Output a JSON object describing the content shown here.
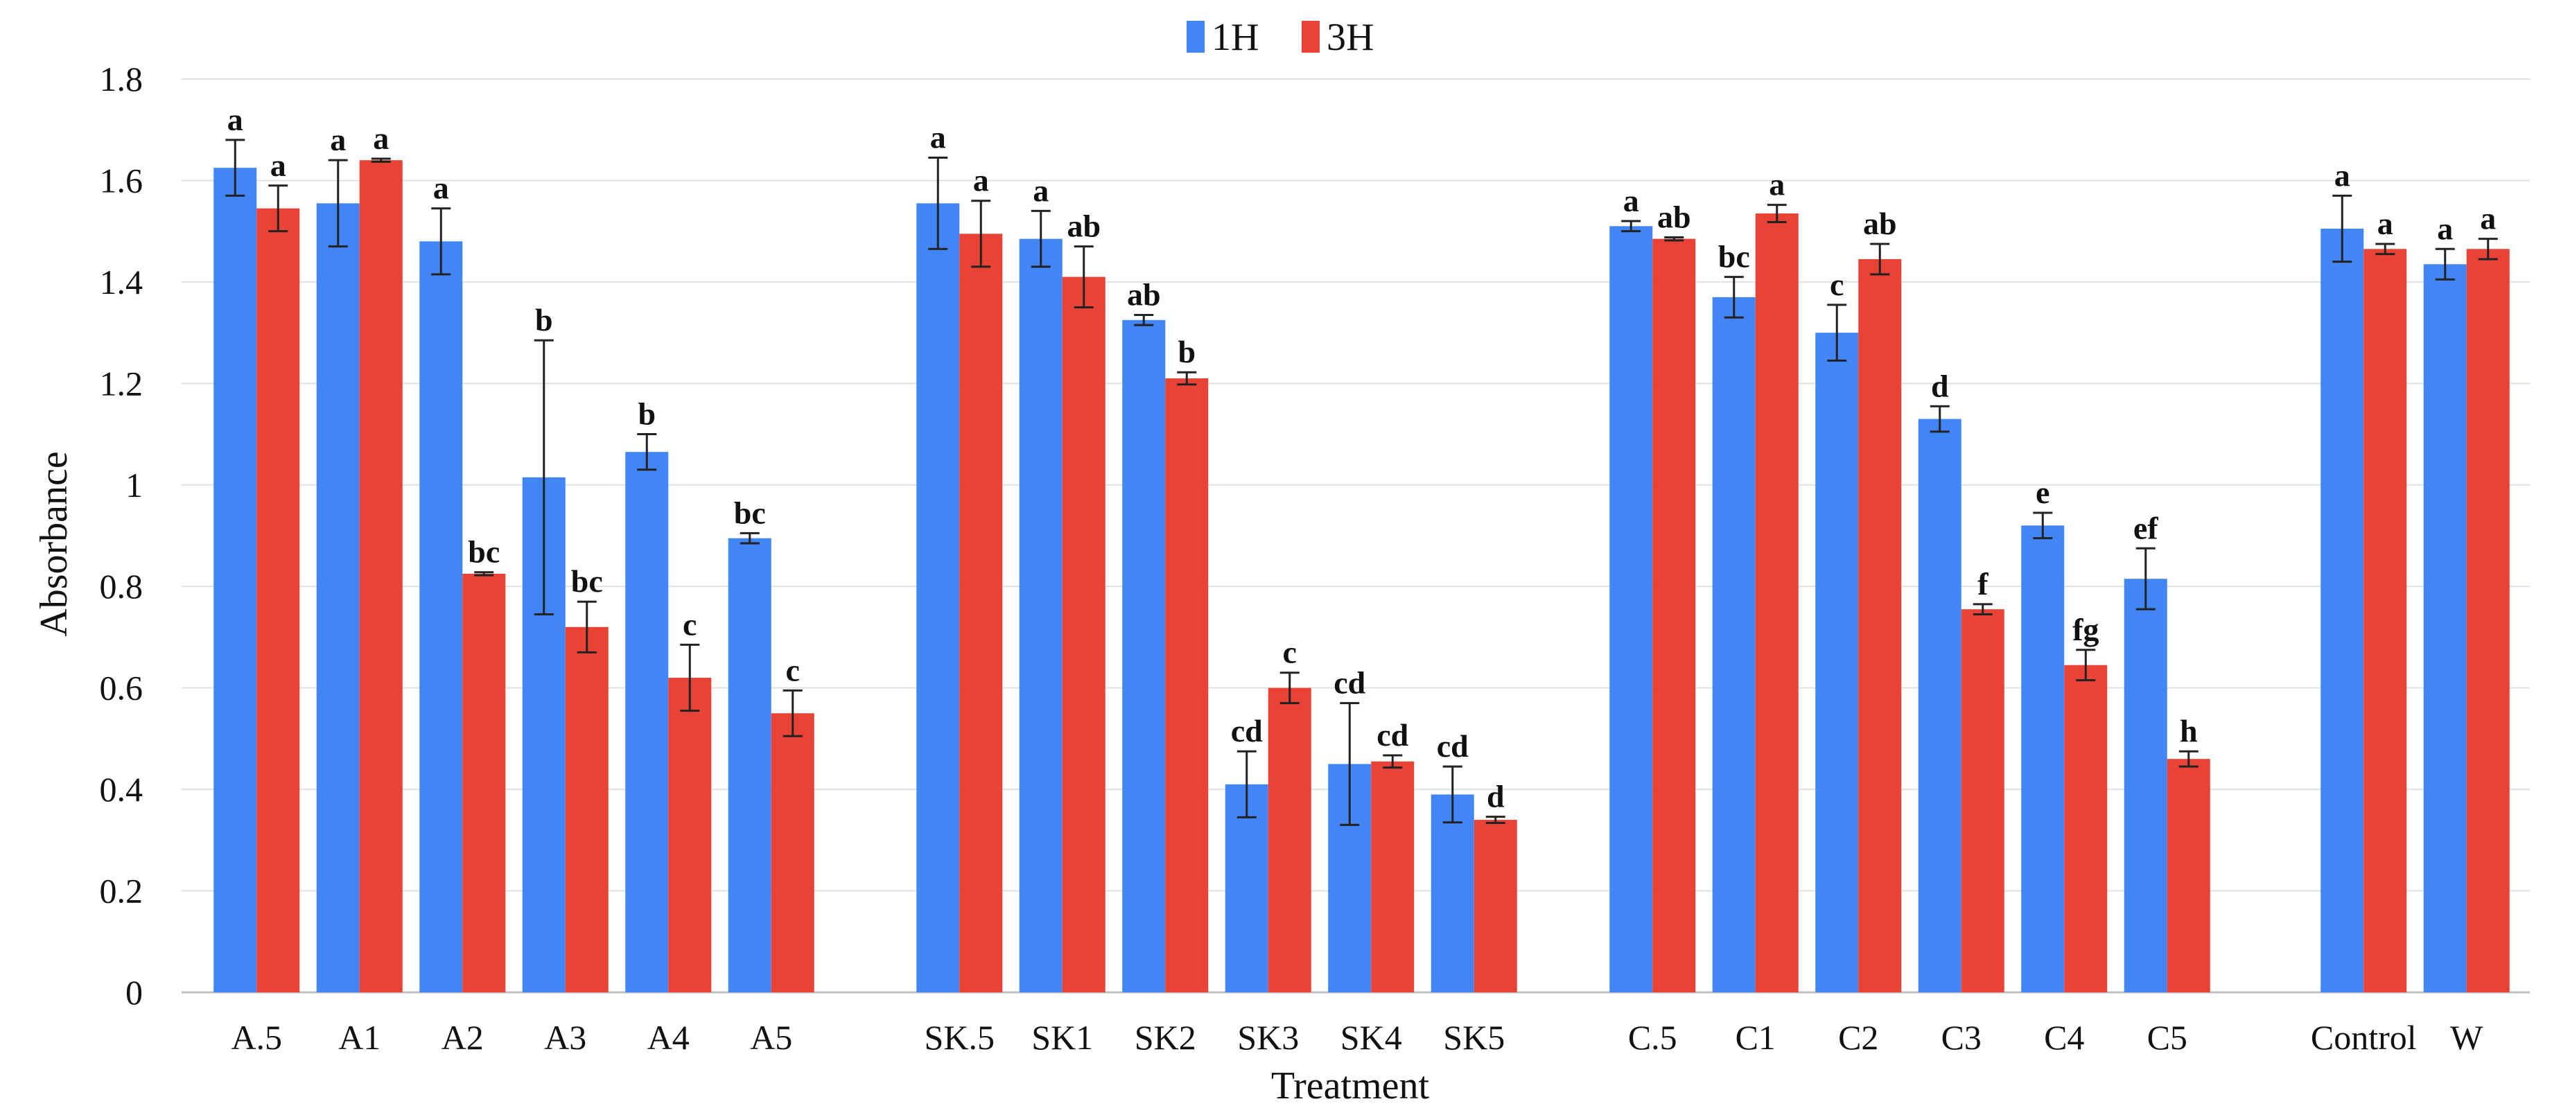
{
  "chart_data": {
    "type": "bar",
    "title": "",
    "xlabel": "Treatment",
    "ylabel": "Absorbance",
    "ylim": [
      0,
      1.8
    ],
    "yticks": [
      0,
      0.2,
      0.4,
      0.6,
      0.8,
      1,
      1.2,
      1.4,
      1.6,
      1.8
    ],
    "ytick_labels": [
      "0",
      "0.2",
      "0.4",
      "0.6",
      "0.8",
      "1",
      "1.2",
      "1.4",
      "1.6",
      "1.8"
    ],
    "grid": true,
    "legend_position": "top-center",
    "groups": [
      [
        "A.5",
        "A1",
        "A2",
        "A3",
        "A4",
        "A5"
      ],
      [
        "SK.5",
        "SK1",
        "SK2",
        "SK3",
        "SK4",
        "SK5"
      ],
      [
        "C.5",
        "C1",
        "C2",
        "C3",
        "C4",
        "C5"
      ],
      [
        "Control",
        "W"
      ]
    ],
    "categories": [
      "A.5",
      "A1",
      "A2",
      "A3",
      "A4",
      "A5",
      "SK.5",
      "SK1",
      "SK2",
      "SK3",
      "SK4",
      "SK5",
      "C.5",
      "C1",
      "C2",
      "C3",
      "C4",
      "C5",
      "Control",
      "W"
    ],
    "series": [
      {
        "name": "1H",
        "color": "#4285f4",
        "values": [
          1.625,
          1.555,
          1.48,
          1.015,
          1.065,
          0.895,
          1.555,
          1.485,
          1.325,
          0.41,
          0.45,
          0.39,
          1.51,
          1.37,
          1.3,
          1.13,
          0.92,
          0.815,
          1.505,
          1.435
        ],
        "errors": [
          0.055,
          0.085,
          0.065,
          0.27,
          0.035,
          0.01,
          0.09,
          0.055,
          0.01,
          0.065,
          0.12,
          0.055,
          0.01,
          0.04,
          0.055,
          0.025,
          0.025,
          0.06,
          0.065,
          0.03
        ],
        "labels": [
          "a",
          "a",
          "a",
          "b",
          "b",
          "bc",
          "a",
          "a",
          "ab",
          "cd",
          "cd",
          "cd",
          "a",
          "bc",
          "c",
          "d",
          "e",
          "ef",
          "a",
          "a"
        ]
      },
      {
        "name": "3H",
        "color": "#ea4335",
        "values": [
          1.545,
          1.64,
          0.825,
          0.72,
          0.62,
          0.55,
          1.495,
          1.41,
          1.21,
          0.6,
          0.455,
          0.34,
          1.485,
          1.535,
          1.445,
          0.755,
          0.645,
          0.46,
          1.465,
          1.465
        ],
        "errors": [
          0.045,
          0.003,
          0.003,
          0.05,
          0.065,
          0.045,
          0.065,
          0.06,
          0.012,
          0.03,
          0.012,
          0.006,
          0.003,
          0.017,
          0.03,
          0.01,
          0.03,
          0.015,
          0.01,
          0.02
        ],
        "labels": [
          "a",
          "a",
          "bc",
          "bc",
          "c",
          "c",
          "a",
          "ab",
          "b",
          "c",
          "cd",
          "d",
          "ab",
          "a",
          "ab",
          "f",
          "fg",
          "h",
          "a",
          "a"
        ]
      }
    ]
  }
}
